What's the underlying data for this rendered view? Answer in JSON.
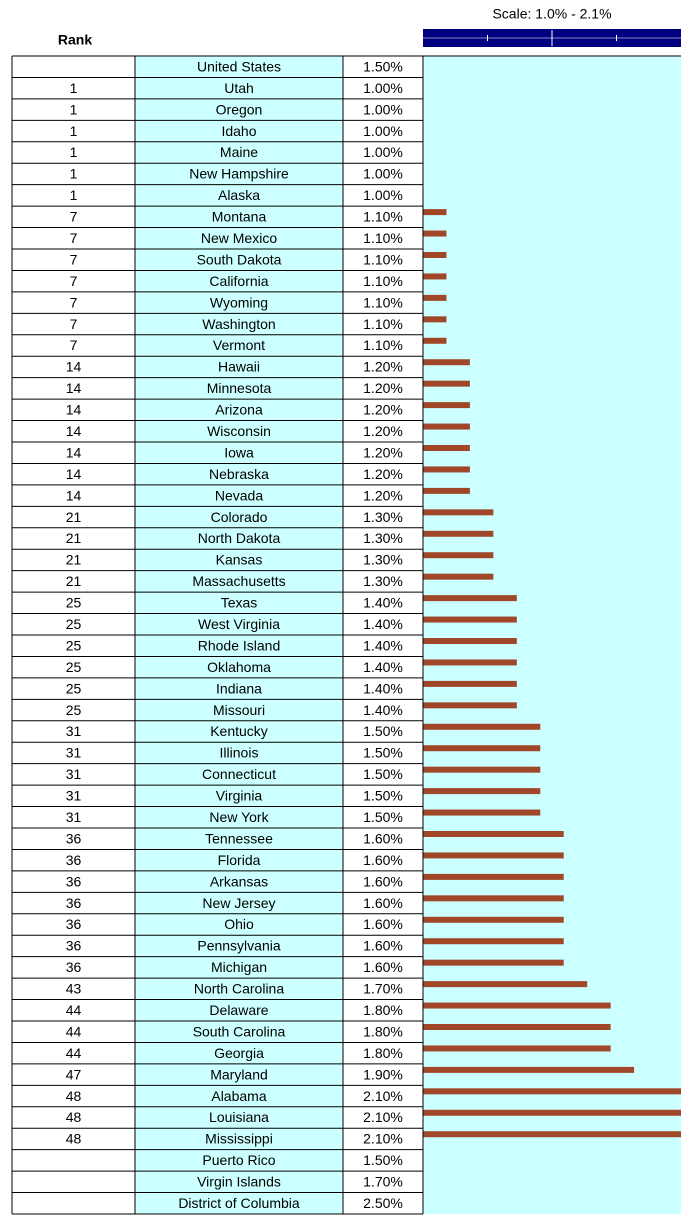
{
  "chart_data": {
    "type": "bar",
    "rank_label": "Rank",
    "scale_label": "Scale: 1.0% - 2.1%",
    "xlim": [
      1.0,
      2.1
    ],
    "xticks": [
      1.275,
      1.55,
      1.825
    ],
    "color": "#a0472a",
    "categories": [
      "United States",
      "Utah",
      "Oregon",
      "Idaho",
      "Maine",
      "New Hampshire",
      "Alaska",
      "Montana",
      "New Mexico",
      "South Dakota",
      "California",
      "Wyoming",
      "Washington",
      "Vermont",
      "Hawaii",
      "Minnesota",
      "Arizona",
      "Wisconsin",
      "Iowa",
      "Nebraska",
      "Nevada",
      "Colorado",
      "North Dakota",
      "Kansas",
      "Massachusetts",
      "Texas",
      "West Virginia",
      "Rhode Island",
      "Oklahoma",
      "Indiana",
      "Missouri",
      "Kentucky",
      "Illinois",
      "Connecticut",
      "Virginia",
      "New York",
      "Tennessee",
      "Florida",
      "Arkansas",
      "New Jersey",
      "Ohio",
      "Pennsylvania",
      "Michigan",
      "North Carolina",
      "Delaware",
      "South Carolina",
      "Georgia",
      "Maryland",
      "Alabama",
      "Louisiana",
      "Mississippi",
      "Puerto Rico",
      "Virgin Islands",
      "District of Columbia"
    ],
    "ranks": [
      null,
      1,
      1,
      1,
      1,
      1,
      1,
      7,
      7,
      7,
      7,
      7,
      7,
      7,
      14,
      14,
      14,
      14,
      14,
      14,
      14,
      21,
      21,
      21,
      21,
      25,
      25,
      25,
      25,
      25,
      25,
      31,
      31,
      31,
      31,
      31,
      36,
      36,
      36,
      36,
      36,
      36,
      36,
      43,
      44,
      44,
      44,
      47,
      48,
      48,
      48,
      null,
      null,
      null
    ],
    "values": [
      1.5,
      1.0,
      1.0,
      1.0,
      1.0,
      1.0,
      1.0,
      1.1,
      1.1,
      1.1,
      1.1,
      1.1,
      1.1,
      1.1,
      1.2,
      1.2,
      1.2,
      1.2,
      1.2,
      1.2,
      1.2,
      1.3,
      1.3,
      1.3,
      1.3,
      1.4,
      1.4,
      1.4,
      1.4,
      1.4,
      1.4,
      1.5,
      1.5,
      1.5,
      1.5,
      1.5,
      1.6,
      1.6,
      1.6,
      1.6,
      1.6,
      1.6,
      1.6,
      1.7,
      1.8,
      1.8,
      1.8,
      1.9,
      2.1,
      2.1,
      2.1,
      1.5,
      1.7,
      2.5
    ],
    "value_labels": [
      "1.50%",
      "1.00%",
      "1.00%",
      "1.00%",
      "1.00%",
      "1.00%",
      "1.00%",
      "1.10%",
      "1.10%",
      "1.10%",
      "1.10%",
      "1.10%",
      "1.10%",
      "1.10%",
      "1.20%",
      "1.20%",
      "1.20%",
      "1.20%",
      "1.20%",
      "1.20%",
      "1.20%",
      "1.30%",
      "1.30%",
      "1.30%",
      "1.30%",
      "1.40%",
      "1.40%",
      "1.40%",
      "1.40%",
      "1.40%",
      "1.40%",
      "1.50%",
      "1.50%",
      "1.50%",
      "1.50%",
      "1.50%",
      "1.60%",
      "1.60%",
      "1.60%",
      "1.60%",
      "1.60%",
      "1.60%",
      "1.60%",
      "1.70%",
      "1.80%",
      "1.80%",
      "1.80%",
      "1.90%",
      "2.10%",
      "2.10%",
      "2.10%",
      "1.50%",
      "1.70%",
      "2.50%"
    ]
  }
}
